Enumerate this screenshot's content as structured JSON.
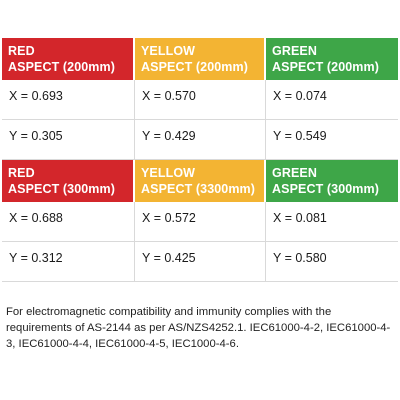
{
  "table": {
    "rows": [
      {
        "type": "header",
        "cells": [
          {
            "line1": "RED",
            "line2": "ASPECT (200mm)",
            "color": "red"
          },
          {
            "line1": "YELLOW",
            "line2": "ASPECT (200mm)",
            "color": "yellow"
          },
          {
            "line1": "GREEN",
            "line2": "ASPECT (200mm)",
            "color": "green"
          }
        ]
      },
      {
        "type": "data",
        "cells": [
          "X = 0.693",
          "X = 0.570",
          "X = 0.074"
        ]
      },
      {
        "type": "data",
        "cells": [
          "Y = 0.305",
          "Y = 0.429",
          "Y = 0.549"
        ]
      },
      {
        "type": "header",
        "cells": [
          {
            "line1": "RED",
            "line2": "ASPECT (300mm)",
            "color": "red"
          },
          {
            "line1": "YELLOW",
            "line2": "ASPECT (3300mm)",
            "color": "yellow"
          },
          {
            "line1": "GREEN",
            "line2": "ASPECT (300mm)",
            "color": "green"
          }
        ]
      },
      {
        "type": "data",
        "cells": [
          "X = 0.688",
          "X = 0.572",
          "X = 0.081"
        ]
      },
      {
        "type": "data",
        "cells": [
          "Y = 0.312",
          "Y = 0.425",
          "Y = 0.580"
        ]
      }
    ]
  },
  "colors": {
    "red": "#d3262b",
    "yellow": "#f3b433",
    "green": "#3ea648"
  },
  "note": "For electromagnetic compatibility and immunity complies with the requirements of AS-2144 as per AS/NZS4252.1. IEC61000-4-2, IEC61000-4-3, IEC61000-4-4, IEC61000-4-5, IEC1000-4-6."
}
